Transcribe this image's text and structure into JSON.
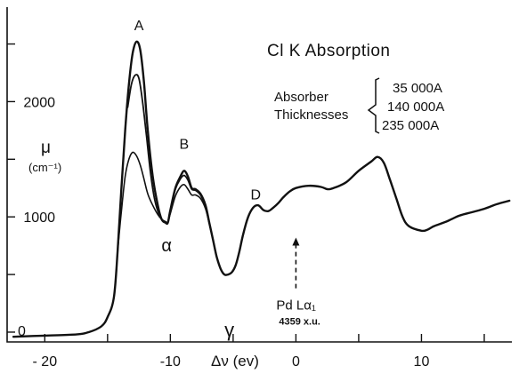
{
  "chart_data": {
    "type": "line",
    "title": "Cl K Absorption",
    "xlabel": "Δν (ev)",
    "ylabel": "μ",
    "ylabel_unit": "(cm⁻¹)",
    "xlim": [
      -23,
      17.2
    ],
    "ylim": [
      -85,
      2820
    ],
    "grid": false,
    "xticks": [
      -20,
      -15,
      -10,
      -5,
      0,
      5,
      10,
      15
    ],
    "xtick_labels": [
      "- 20",
      "",
      "-10",
      "",
      "0",
      "",
      "10",
      ""
    ],
    "yticks": [
      0,
      500,
      1000,
      1500,
      2000,
      2500
    ],
    "ytick_labels": [
      "0",
      "",
      "1000",
      "",
      "2000",
      ""
    ],
    "legend": {
      "heading_line1": "Absorber",
      "heading_line2": "Thicknesses",
      "placement": "top-right",
      "entries": [
        "35 000A",
        "140 000A",
        "235 000A"
      ]
    },
    "peak_labels": [
      {
        "text": "A",
        "x": -12.5,
        "y": 2620
      },
      {
        "text": "B",
        "x": -8.9,
        "y": 1590
      },
      {
        "text": "D",
        "x": -3.2,
        "y": 1150
      },
      {
        "text": "α",
        "x": -10.3,
        "y": 700
      },
      {
        "text": "γ",
        "x": -5.3,
        "y": -40
      }
    ],
    "annotation": {
      "label": "Pd Lα₁",
      "sublabel": "4359 x.u.",
      "x": 0,
      "arrow_from_y": 380,
      "arrow_to_y": 820
    },
    "series": [
      {
        "x": [
          -22.5,
          -20,
          -17.5,
          -16.5,
          -15.5,
          -15,
          -14.5,
          -14.2,
          -13.9,
          -13.6,
          -13.3,
          -13,
          -12.7,
          -12.4,
          -12.1,
          -11.8,
          -11.4,
          -11,
          -10.7,
          -10.4,
          -10.2,
          -10,
          -9.6,
          -9.2,
          -8.9,
          -8.6,
          -8.3,
          -8,
          -7.6,
          -7.2,
          -6.9,
          -6.6,
          -6.3,
          -6,
          -5.7,
          -5.4,
          -5.1,
          -4.8,
          -4.5,
          -4.2,
          -3.8,
          -3.4,
          -3,
          -2.6,
          -2.2,
          -1.8,
          -1.4,
          -1,
          -0.5,
          0,
          1,
          2,
          2.5,
          3,
          4,
          5,
          6,
          6.5,
          7,
          7.5,
          8,
          8.5,
          9,
          10,
          10.5,
          11,
          12,
          13,
          14,
          15,
          16,
          17
        ],
        "values": [
          -40,
          -30,
          -20,
          0,
          50,
          130,
          300,
          700,
          1250,
          1750,
          2150,
          2420,
          2520,
          2450,
          2170,
          1750,
          1350,
          1100,
          980,
          950,
          950,
          1060,
          1250,
          1350,
          1400,
          1350,
          1250,
          1240,
          1200,
          1100,
          950,
          800,
          650,
          550,
          500,
          500,
          520,
          580,
          700,
          850,
          1000,
          1080,
          1100,
          1060,
          1050,
          1080,
          1120,
          1170,
          1220,
          1250,
          1270,
          1260,
          1240,
          1250,
          1300,
          1400,
          1480,
          1520,
          1470,
          1320,
          1160,
          1000,
          920,
          880,
          890,
          920,
          960,
          1010,
          1040,
          1070,
          1110,
          1140
        ],
        "peaks": {
          "A": 2520,
          "B": 1400
        },
        "stroke_width": 2.4
      },
      {
        "x": [
          -13.4,
          -13.1,
          -12.8,
          -12.5,
          -12.2,
          -11.9,
          -11.6,
          -11.3,
          -11,
          -10.7,
          -10.4,
          -10.2,
          -10,
          -9.6,
          -9.2,
          -8.9,
          -8.6,
          -8.3,
          -8,
          -7.6,
          -7.2,
          -6.9,
          -6.6
        ],
        "values": [
          1950,
          2150,
          2230,
          2200,
          1990,
          1700,
          1400,
          1180,
          1050,
          980,
          955,
          950,
          1060,
          1240,
          1330,
          1360,
          1320,
          1240,
          1230,
          1190,
          1090,
          945,
          800
        ],
        "peaks": {
          "A": 2230,
          "B": 1360
        },
        "stroke_width": 1.8
      },
      {
        "x": [
          -14.2,
          -13.9,
          -13.6,
          -13.3,
          -13,
          -12.7,
          -12.4,
          -12.1,
          -11.8,
          -11.4,
          -11,
          -10.7,
          -10.4,
          -10.2,
          -10,
          -9.6,
          -9.2,
          -8.9,
          -8.6,
          -8.3,
          -8,
          -7.6,
          -7.2,
          -6.9,
          -6.6
        ],
        "values": [
          700,
          1050,
          1350,
          1500,
          1560,
          1530,
          1450,
          1330,
          1200,
          1100,
          1020,
          980,
          960,
          955,
          1030,
          1180,
          1260,
          1280,
          1240,
          1190,
          1190,
          1160,
          1070,
          940,
          800
        ],
        "peaks": {
          "A": 1560,
          "B": 1280
        },
        "stroke_width": 1.6
      }
    ]
  }
}
